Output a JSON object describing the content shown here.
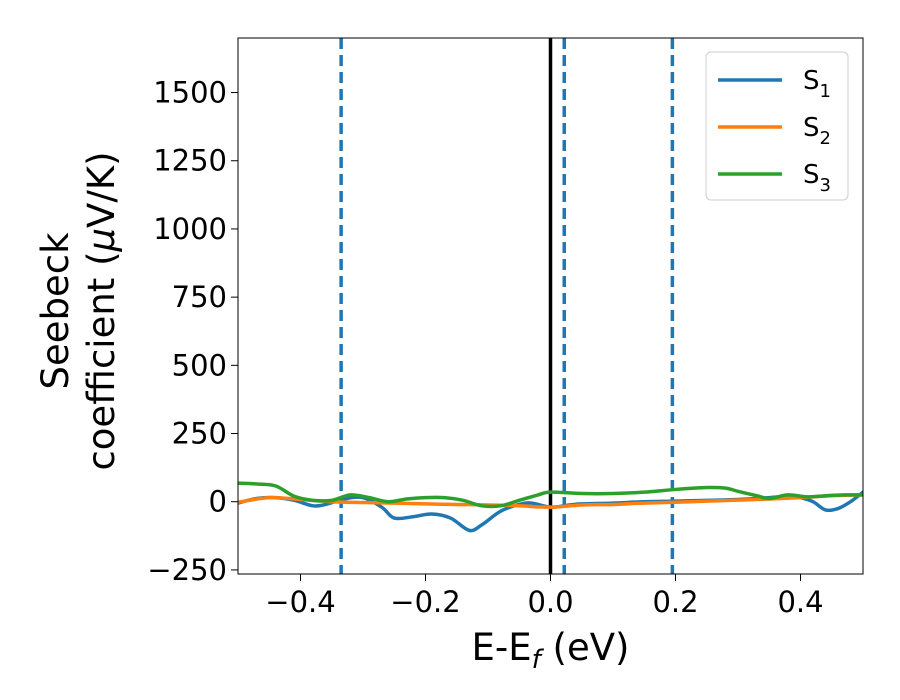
{
  "chart_data": {
    "type": "line",
    "title": "",
    "xlabel": {
      "main": "E-E",
      "sub": "f",
      "unit": " (eV)"
    },
    "ylabel": {
      "line1": "Seebeck",
      "line2": "coefficient  (",
      "mu": "μ",
      "line2_end": "V/K)"
    },
    "xlim": [
      -0.5,
      0.5
    ],
    "ylim": [
      -265,
      1700
    ],
    "xticks": [
      {
        "value": -0.4,
        "label": "−0.4"
      },
      {
        "value": -0.2,
        "label": "−0.2"
      },
      {
        "value": 0.0,
        "label": "0.0"
      },
      {
        "value": 0.2,
        "label": "0.2"
      },
      {
        "value": 0.4,
        "label": "0.4"
      }
    ],
    "yticks": [
      {
        "value": -250,
        "label": "−250"
      },
      {
        "value": 0,
        "label": "0"
      },
      {
        "value": 250,
        "label": "250"
      },
      {
        "value": 500,
        "label": "500"
      },
      {
        "value": 750,
        "label": "750"
      },
      {
        "value": 1000,
        "label": "1000"
      },
      {
        "value": 1250,
        "label": "1250"
      },
      {
        "value": 1500,
        "label": "1500"
      }
    ],
    "grid": false,
    "legend_position": "top-right",
    "vertical_lines": [
      {
        "x": 0.0,
        "style": "solid",
        "color": "#000000"
      },
      {
        "x": -0.335,
        "style": "dashed",
        "color": "#1f77b4"
      },
      {
        "x": 0.022,
        "style": "dashed",
        "color": "#1f77b4"
      },
      {
        "x": 0.195,
        "style": "dashed",
        "color": "#1f77b4"
      }
    ],
    "series": [
      {
        "name": "S",
        "sub": "1",
        "color": "#1f77b4",
        "x": [
          -0.5,
          -0.47,
          -0.44,
          -0.41,
          -0.38,
          -0.36,
          -0.33,
          -0.3,
          -0.27,
          -0.25,
          -0.22,
          -0.19,
          -0.16,
          -0.13,
          -0.11,
          -0.08,
          -0.05,
          -0.03,
          0.0,
          0.03,
          0.05,
          0.1,
          0.15,
          0.2,
          0.25,
          0.3,
          0.35,
          0.38,
          0.4,
          0.42,
          0.44,
          0.46,
          0.48,
          0.5
        ],
        "y": [
          -5,
          12,
          15,
          5,
          -15,
          -10,
          10,
          15,
          -20,
          -60,
          -55,
          -45,
          -60,
          -105,
          -85,
          -35,
          -10,
          -5,
          -20,
          -12,
          -8,
          -5,
          0,
          2,
          5,
          8,
          15,
          20,
          15,
          0,
          -30,
          -25,
          0,
          35
        ]
      },
      {
        "name": "S",
        "sub": "2",
        "color": "#ff7f0e",
        "x": [
          -0.5,
          -0.45,
          -0.4,
          -0.35,
          -0.3,
          -0.25,
          -0.2,
          -0.15,
          -0.1,
          -0.05,
          0.0,
          0.05,
          0.1,
          0.15,
          0.2,
          0.25,
          0.3,
          0.35,
          0.4,
          0.45,
          0.5
        ],
        "y": [
          -2,
          15,
          8,
          0,
          -3,
          -5,
          -8,
          -10,
          -12,
          -15,
          -20,
          -12,
          -10,
          -5,
          -2,
          2,
          6,
          10,
          15,
          22,
          25
        ]
      },
      {
        "name": "S",
        "sub": "3",
        "color": "#2ca02c",
        "x": [
          -0.5,
          -0.47,
          -0.44,
          -0.41,
          -0.38,
          -0.35,
          -0.32,
          -0.29,
          -0.26,
          -0.23,
          -0.2,
          -0.17,
          -0.14,
          -0.11,
          -0.08,
          -0.05,
          -0.02,
          0.0,
          0.05,
          0.1,
          0.15,
          0.2,
          0.25,
          0.28,
          0.3,
          0.33,
          0.35,
          0.38,
          0.41,
          0.44,
          0.47,
          0.5
        ],
        "y": [
          68,
          65,
          58,
          20,
          5,
          5,
          25,
          15,
          0,
          10,
          15,
          15,
          5,
          -15,
          -15,
          5,
          25,
          35,
          30,
          30,
          35,
          45,
          52,
          50,
          38,
          22,
          12,
          25,
          18,
          22,
          25,
          25
        ]
      }
    ]
  }
}
